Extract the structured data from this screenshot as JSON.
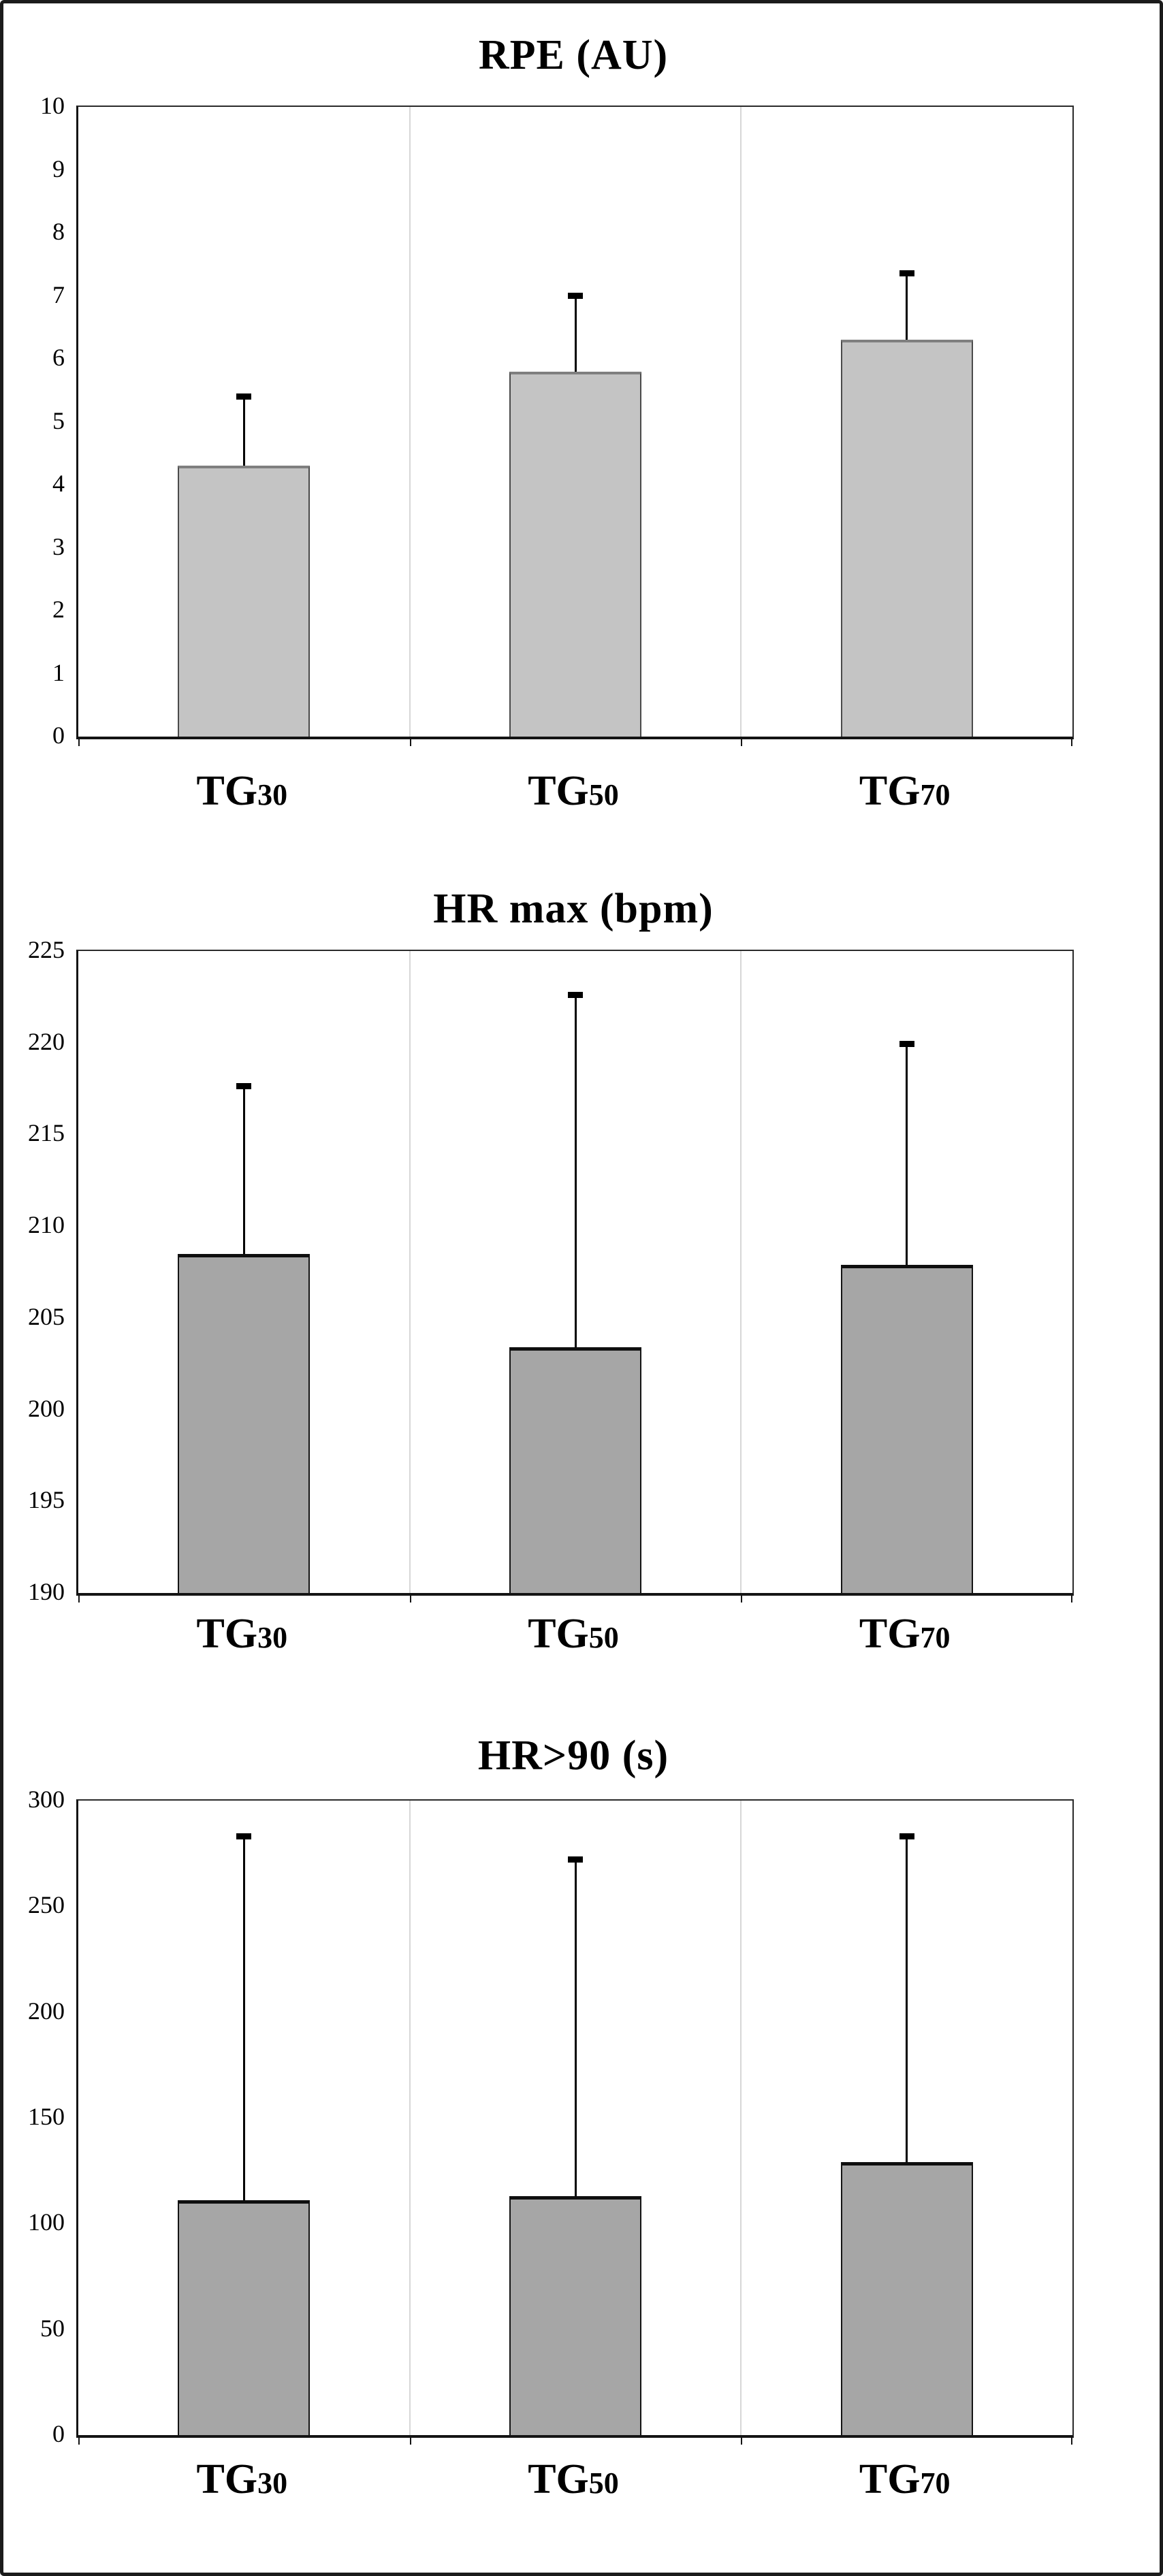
{
  "figure": {
    "background": "#ffffff",
    "frame_color": "#1b1b1b",
    "separator_color": "#d7d7d7",
    "axis_color": "#141414",
    "error_bar_color": "#000000"
  },
  "chart_data": [
    {
      "type": "bar",
      "title": "RPE (AU)",
      "categories": [
        "TG30",
        "TG50",
        "TG70"
      ],
      "categories_rich": [
        {
          "base": "TG",
          "sub": "30"
        },
        {
          "base": "TG",
          "sub": "50"
        },
        {
          "base": "TG",
          "sub": "70"
        }
      ],
      "values": [
        4.3,
        5.8,
        6.3
      ],
      "error_plus": [
        1.1,
        1.2,
        1.05
      ],
      "ylim": [
        0,
        10
      ],
      "yticks": [
        0,
        1,
        2,
        3,
        4,
        5,
        6,
        7,
        8,
        9,
        10
      ],
      "xlabel": "",
      "ylabel": "",
      "grid": "vertical-category-separators-only",
      "legend": "none",
      "bar_fill": "#c4c4c4",
      "bar_border": "#4a4a4a",
      "bar_top_edge": "#7f7f7f"
    },
    {
      "type": "bar",
      "title": "HR max (bpm)",
      "categories": [
        "TG30",
        "TG50",
        "TG70"
      ],
      "categories_rich": [
        {
          "base": "TG",
          "sub": "30"
        },
        {
          "base": "TG",
          "sub": "50"
        },
        {
          "base": "TG",
          "sub": "70"
        }
      ],
      "values": [
        208.5,
        203.4,
        207.9
      ],
      "error_plus": [
        9.1,
        19.2,
        12.0
      ],
      "ylim": [
        190,
        225
      ],
      "yticks": [
        190,
        195,
        200,
        205,
        210,
        215,
        220,
        225
      ],
      "xlabel": "",
      "ylabel": "",
      "grid": "vertical-category-separators-only",
      "legend": "none",
      "bar_fill": "#a6a6a6",
      "bar_border": "#141414",
      "bar_top_edge": "#0f0f0f"
    },
    {
      "type": "bar",
      "title": "HR>90 (s)",
      "categories": [
        "TG30",
        "TG50",
        "TG70"
      ],
      "categories_rich": [
        {
          "base": "TG",
          "sub": "30"
        },
        {
          "base": "TG",
          "sub": "50"
        },
        {
          "base": "TG",
          "sub": "70"
        }
      ],
      "values": [
        111,
        113,
        129
      ],
      "error_plus": [
        172,
        159,
        154
      ],
      "ylim": [
        0,
        300
      ],
      "yticks": [
        0,
        50,
        100,
        150,
        200,
        250,
        300
      ],
      "xlabel": "",
      "ylabel": "",
      "grid": "vertical-category-separators-only",
      "legend": "none",
      "bar_fill": "#a6a6a6",
      "bar_border": "#141414",
      "bar_top_edge": "#0f0f0f"
    }
  ]
}
